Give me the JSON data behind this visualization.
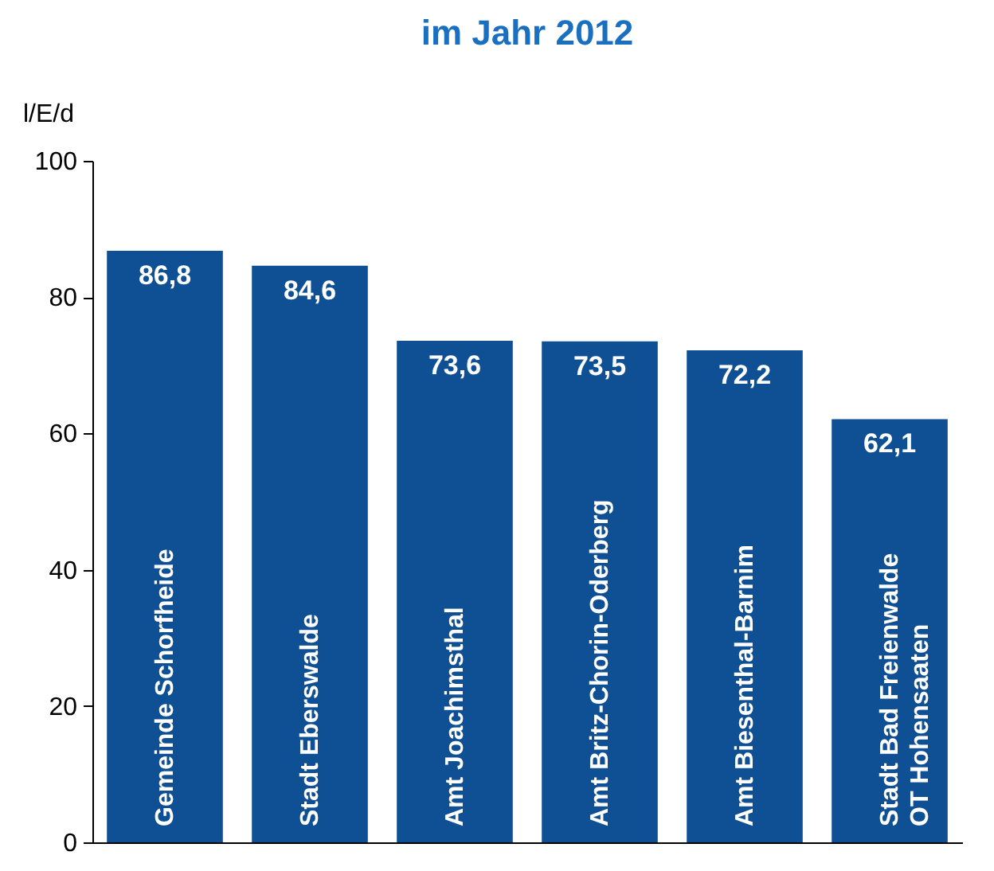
{
  "chart_data": {
    "type": "bar",
    "title": "im Jahr 2012",
    "ylabel": "l/E/d",
    "categories": [
      "Gemeinde Schorfheide",
      "Stadt Eberswalde",
      "Amt Joachimsthal",
      "Amt Britz-Chorin-Oderberg",
      "Amt Biesenthal-Barnim",
      "Stadt Bad Freienwalde\nOT Hohensaaten"
    ],
    "values": [
      86.8,
      84.6,
      73.6,
      73.5,
      72.2,
      62.1
    ],
    "value_labels": [
      "86,8",
      "84,6",
      "73,6",
      "73,5",
      "72,2",
      "62,1"
    ],
    "color": "#0f4f94",
    "ylim": [
      0,
      100
    ],
    "yticks": [
      0,
      20,
      40,
      60,
      80,
      100
    ],
    "grid": false
  }
}
